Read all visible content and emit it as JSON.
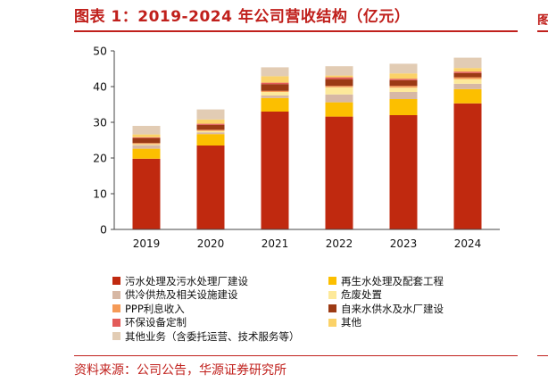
{
  "header": {
    "title": "图表 1：2019-2024 年公司营收结构（亿元）",
    "right_edge_glyph": "图"
  },
  "footer": {
    "source": "资料来源：公司公告，华源证券研究所"
  },
  "chart_data": {
    "type": "bar",
    "stacked": true,
    "categories": [
      "2019",
      "2020",
      "2021",
      "2022",
      "2023",
      "2024"
    ],
    "ylim": [
      0,
      50
    ],
    "yticks": [
      0,
      10,
      20,
      30,
      40,
      50
    ],
    "grid": false,
    "legend_position": "bottom",
    "series": [
      {
        "name": "污水处理及污水处理厂建设",
        "color": "#c0290f",
        "values": [
          19.8,
          23.5,
          33.0,
          31.6,
          32.0,
          35.3
        ]
      },
      {
        "name": "再生水处理及配套工程",
        "color": "#fcbf00",
        "values": [
          2.8,
          3.2,
          3.8,
          4.0,
          4.5,
          4.0
        ]
      },
      {
        "name": "供冷供热及相关设施建设",
        "color": "#d7b8a5",
        "values": [
          1.0,
          0.5,
          0.7,
          2.2,
          2.0,
          1.5
        ]
      },
      {
        "name": "危废处置",
        "color": "#fde99a",
        "values": [
          0.3,
          0.4,
          1.0,
          2.0,
          1.2,
          1.3
        ]
      },
      {
        "name": "PPP利息收入",
        "color": "#f59a57",
        "values": [
          0.3,
          0.3,
          0.3,
          0.4,
          0.5,
          0.5
        ]
      },
      {
        "name": "自来水供水及水厂建设",
        "color": "#9c3a14",
        "values": [
          1.4,
          1.4,
          1.9,
          1.9,
          1.6,
          1.2
        ]
      },
      {
        "name": "环保设备定制",
        "color": "#e35b59",
        "values": [
          0.2,
          0.3,
          0.4,
          0.5,
          0.4,
          0.4
        ]
      },
      {
        "name": "其他",
        "color": "#fbd268",
        "values": [
          0.8,
          1.2,
          1.8,
          0.5,
          1.5,
          1.0
        ]
      },
      {
        "name": "其他业务（含委托运营、技术服务等）",
        "color": "#e2ccb4",
        "values": [
          2.4,
          2.8,
          2.5,
          2.6,
          2.7,
          2.9
        ]
      }
    ]
  }
}
